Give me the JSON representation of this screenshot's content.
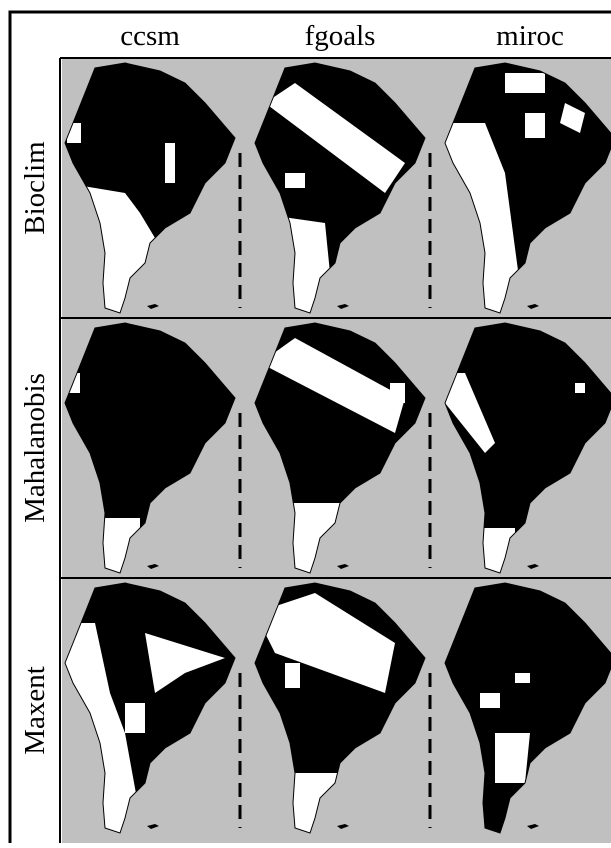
{
  "columns": [
    "ccsm",
    "fgoals",
    "miroc"
  ],
  "rows": [
    "Bioclim",
    "Mahalanobis",
    "Maxent"
  ]
}
